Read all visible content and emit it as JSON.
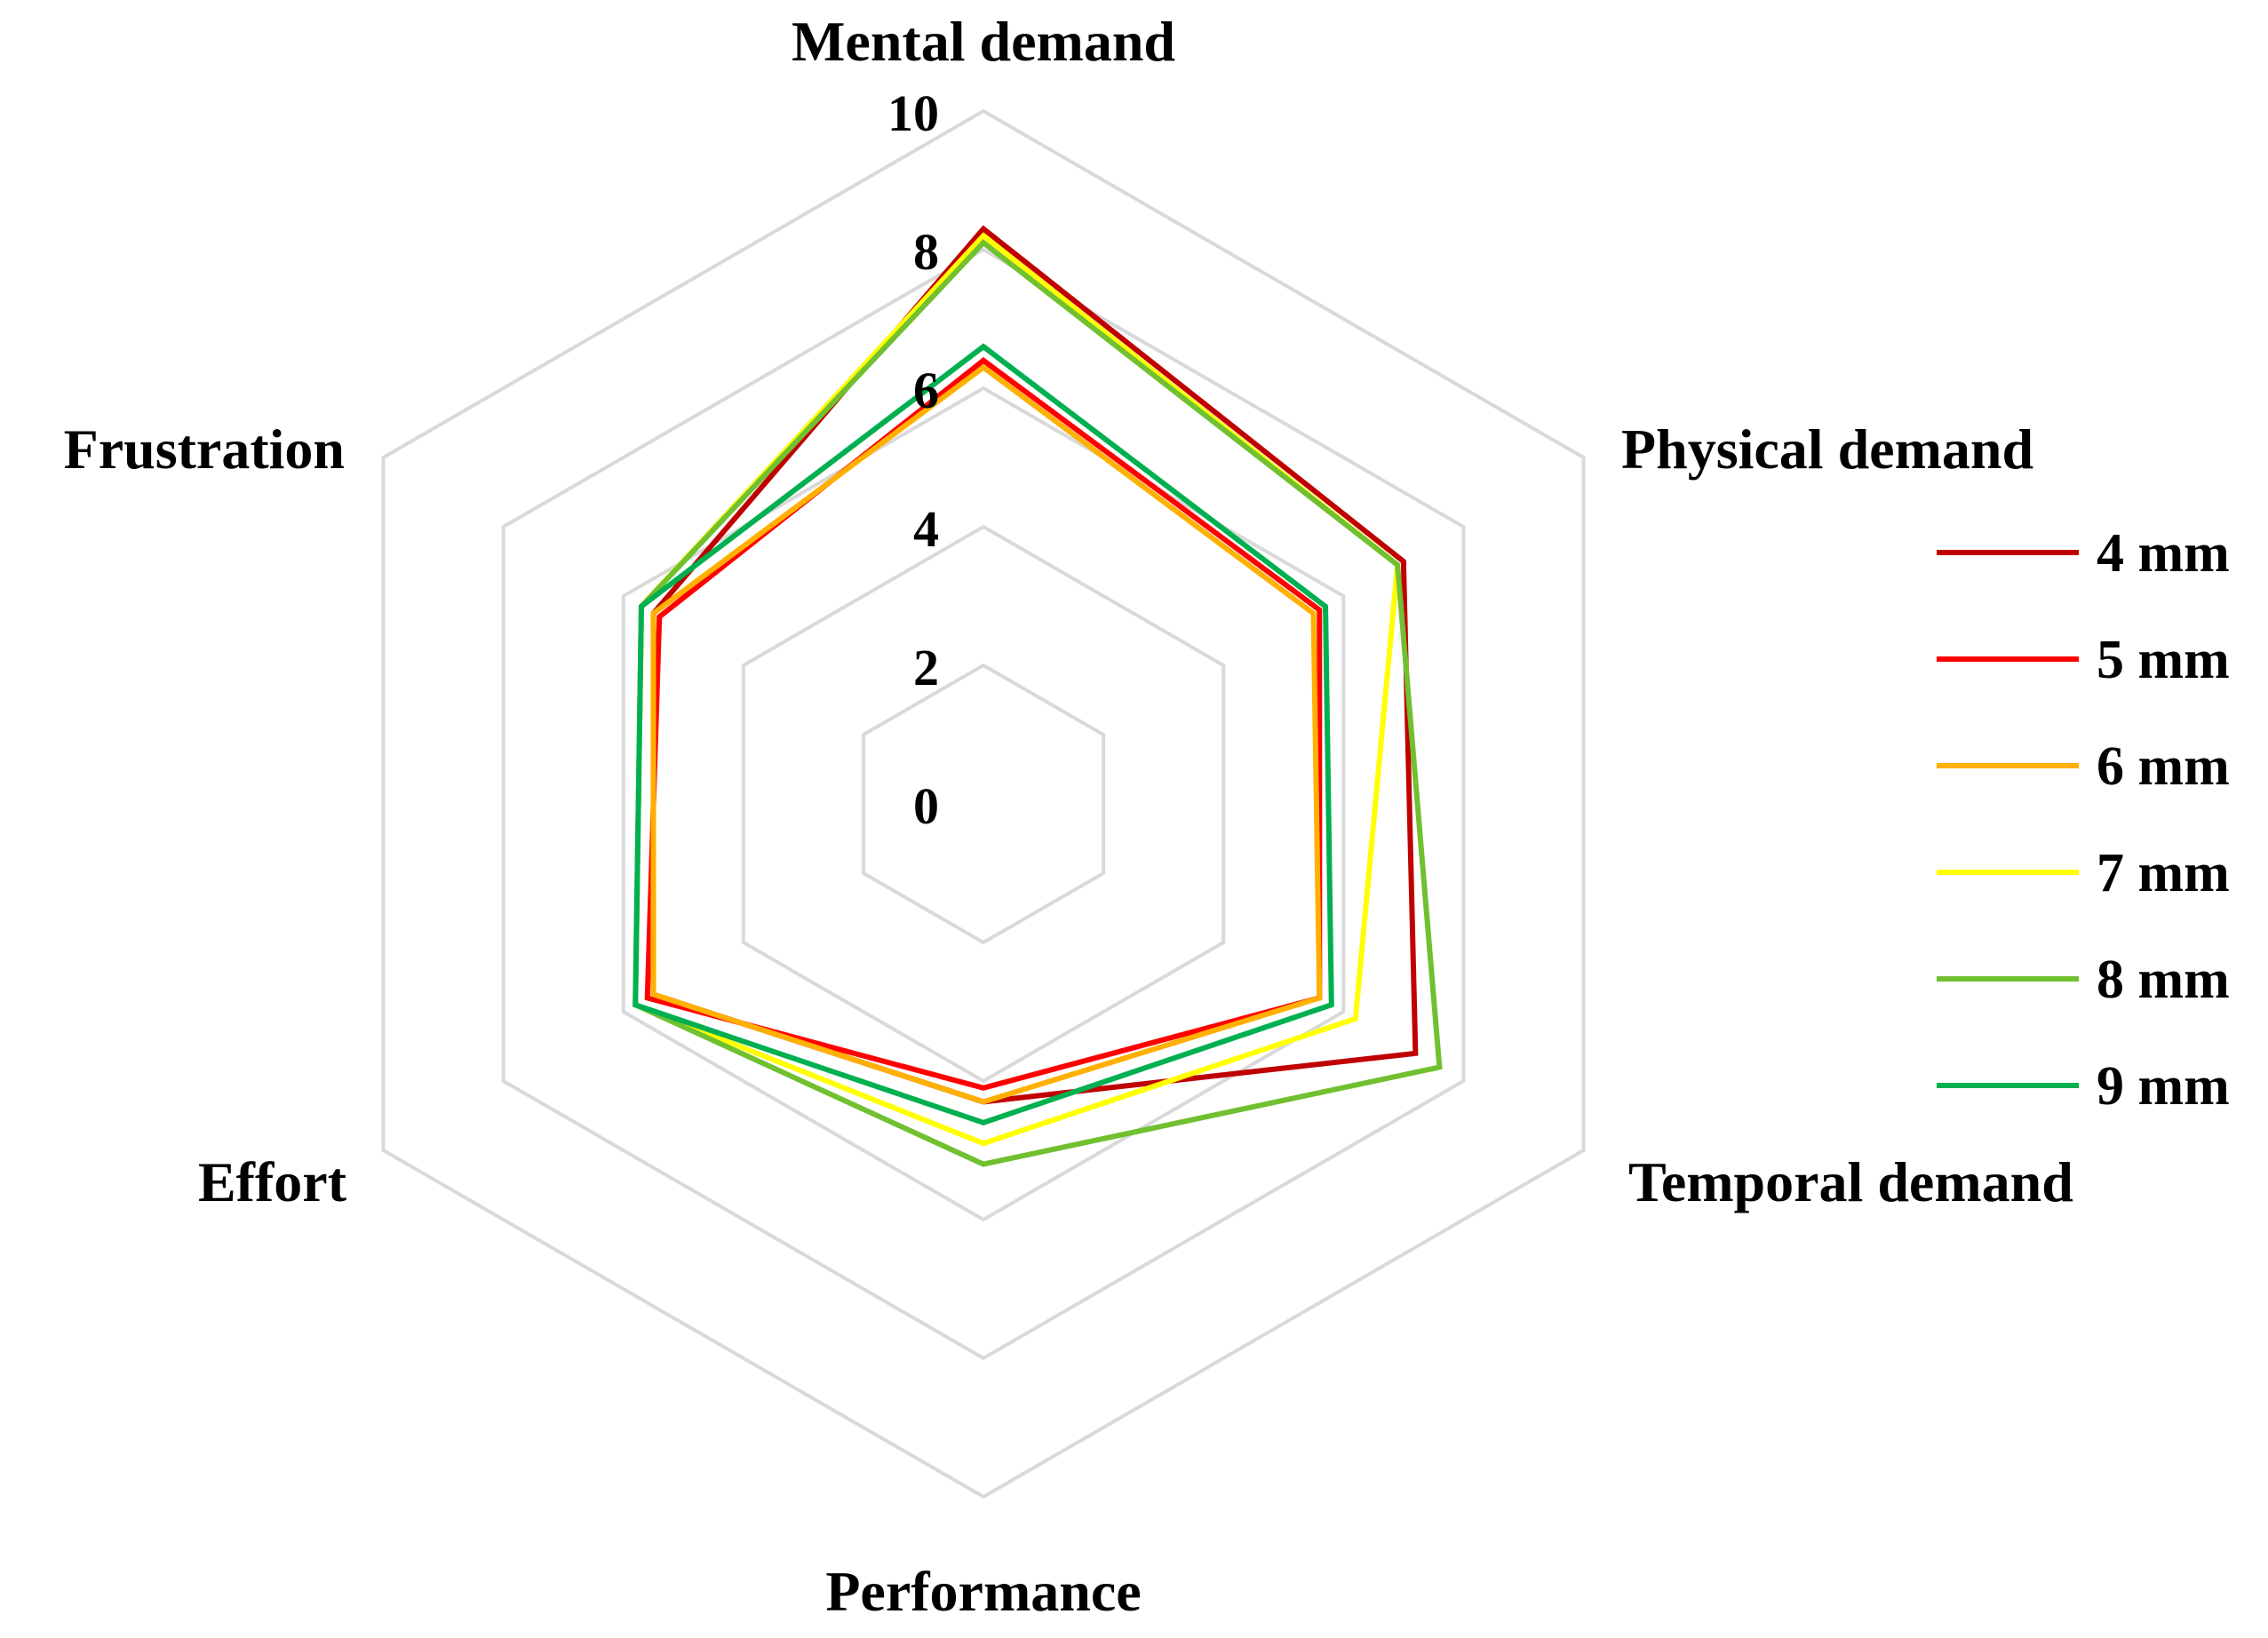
{
  "chart_data": {
    "type": "radar",
    "axes": [
      "Mental demand",
      "Physical demand",
      "Temporal demand",
      "Performance",
      "Effort",
      "Frustration"
    ],
    "ticks": [
      "0",
      "2",
      "4",
      "6",
      "8",
      "10"
    ],
    "rlim": [
      0,
      10
    ],
    "grid": true,
    "legend_position": "right",
    "series": [
      {
        "name": "4 mm",
        "color": "#C00000",
        "values": [
          8.3,
          7.0,
          7.2,
          4.3,
          5.5,
          5.5
        ]
      },
      {
        "name": "5 mm",
        "color": "#FF0000",
        "values": [
          6.4,
          5.6,
          5.6,
          4.1,
          5.6,
          5.4
        ]
      },
      {
        "name": "6 mm",
        "color": "#FFB000",
        "values": [
          6.3,
          5.5,
          5.6,
          4.3,
          5.5,
          5.5
        ]
      },
      {
        "name": "7 mm",
        "color": "#FFFF00",
        "values": [
          8.2,
          6.9,
          6.2,
          4.9,
          5.8,
          5.7
        ]
      },
      {
        "name": "8 mm",
        "color": "#70C030",
        "values": [
          8.1,
          6.9,
          7.6,
          5.2,
          5.8,
          5.7
        ]
      },
      {
        "name": "9 mm",
        "color": "#00B050",
        "values": [
          6.6,
          5.7,
          5.8,
          4.6,
          5.8,
          5.7
        ]
      }
    ]
  }
}
